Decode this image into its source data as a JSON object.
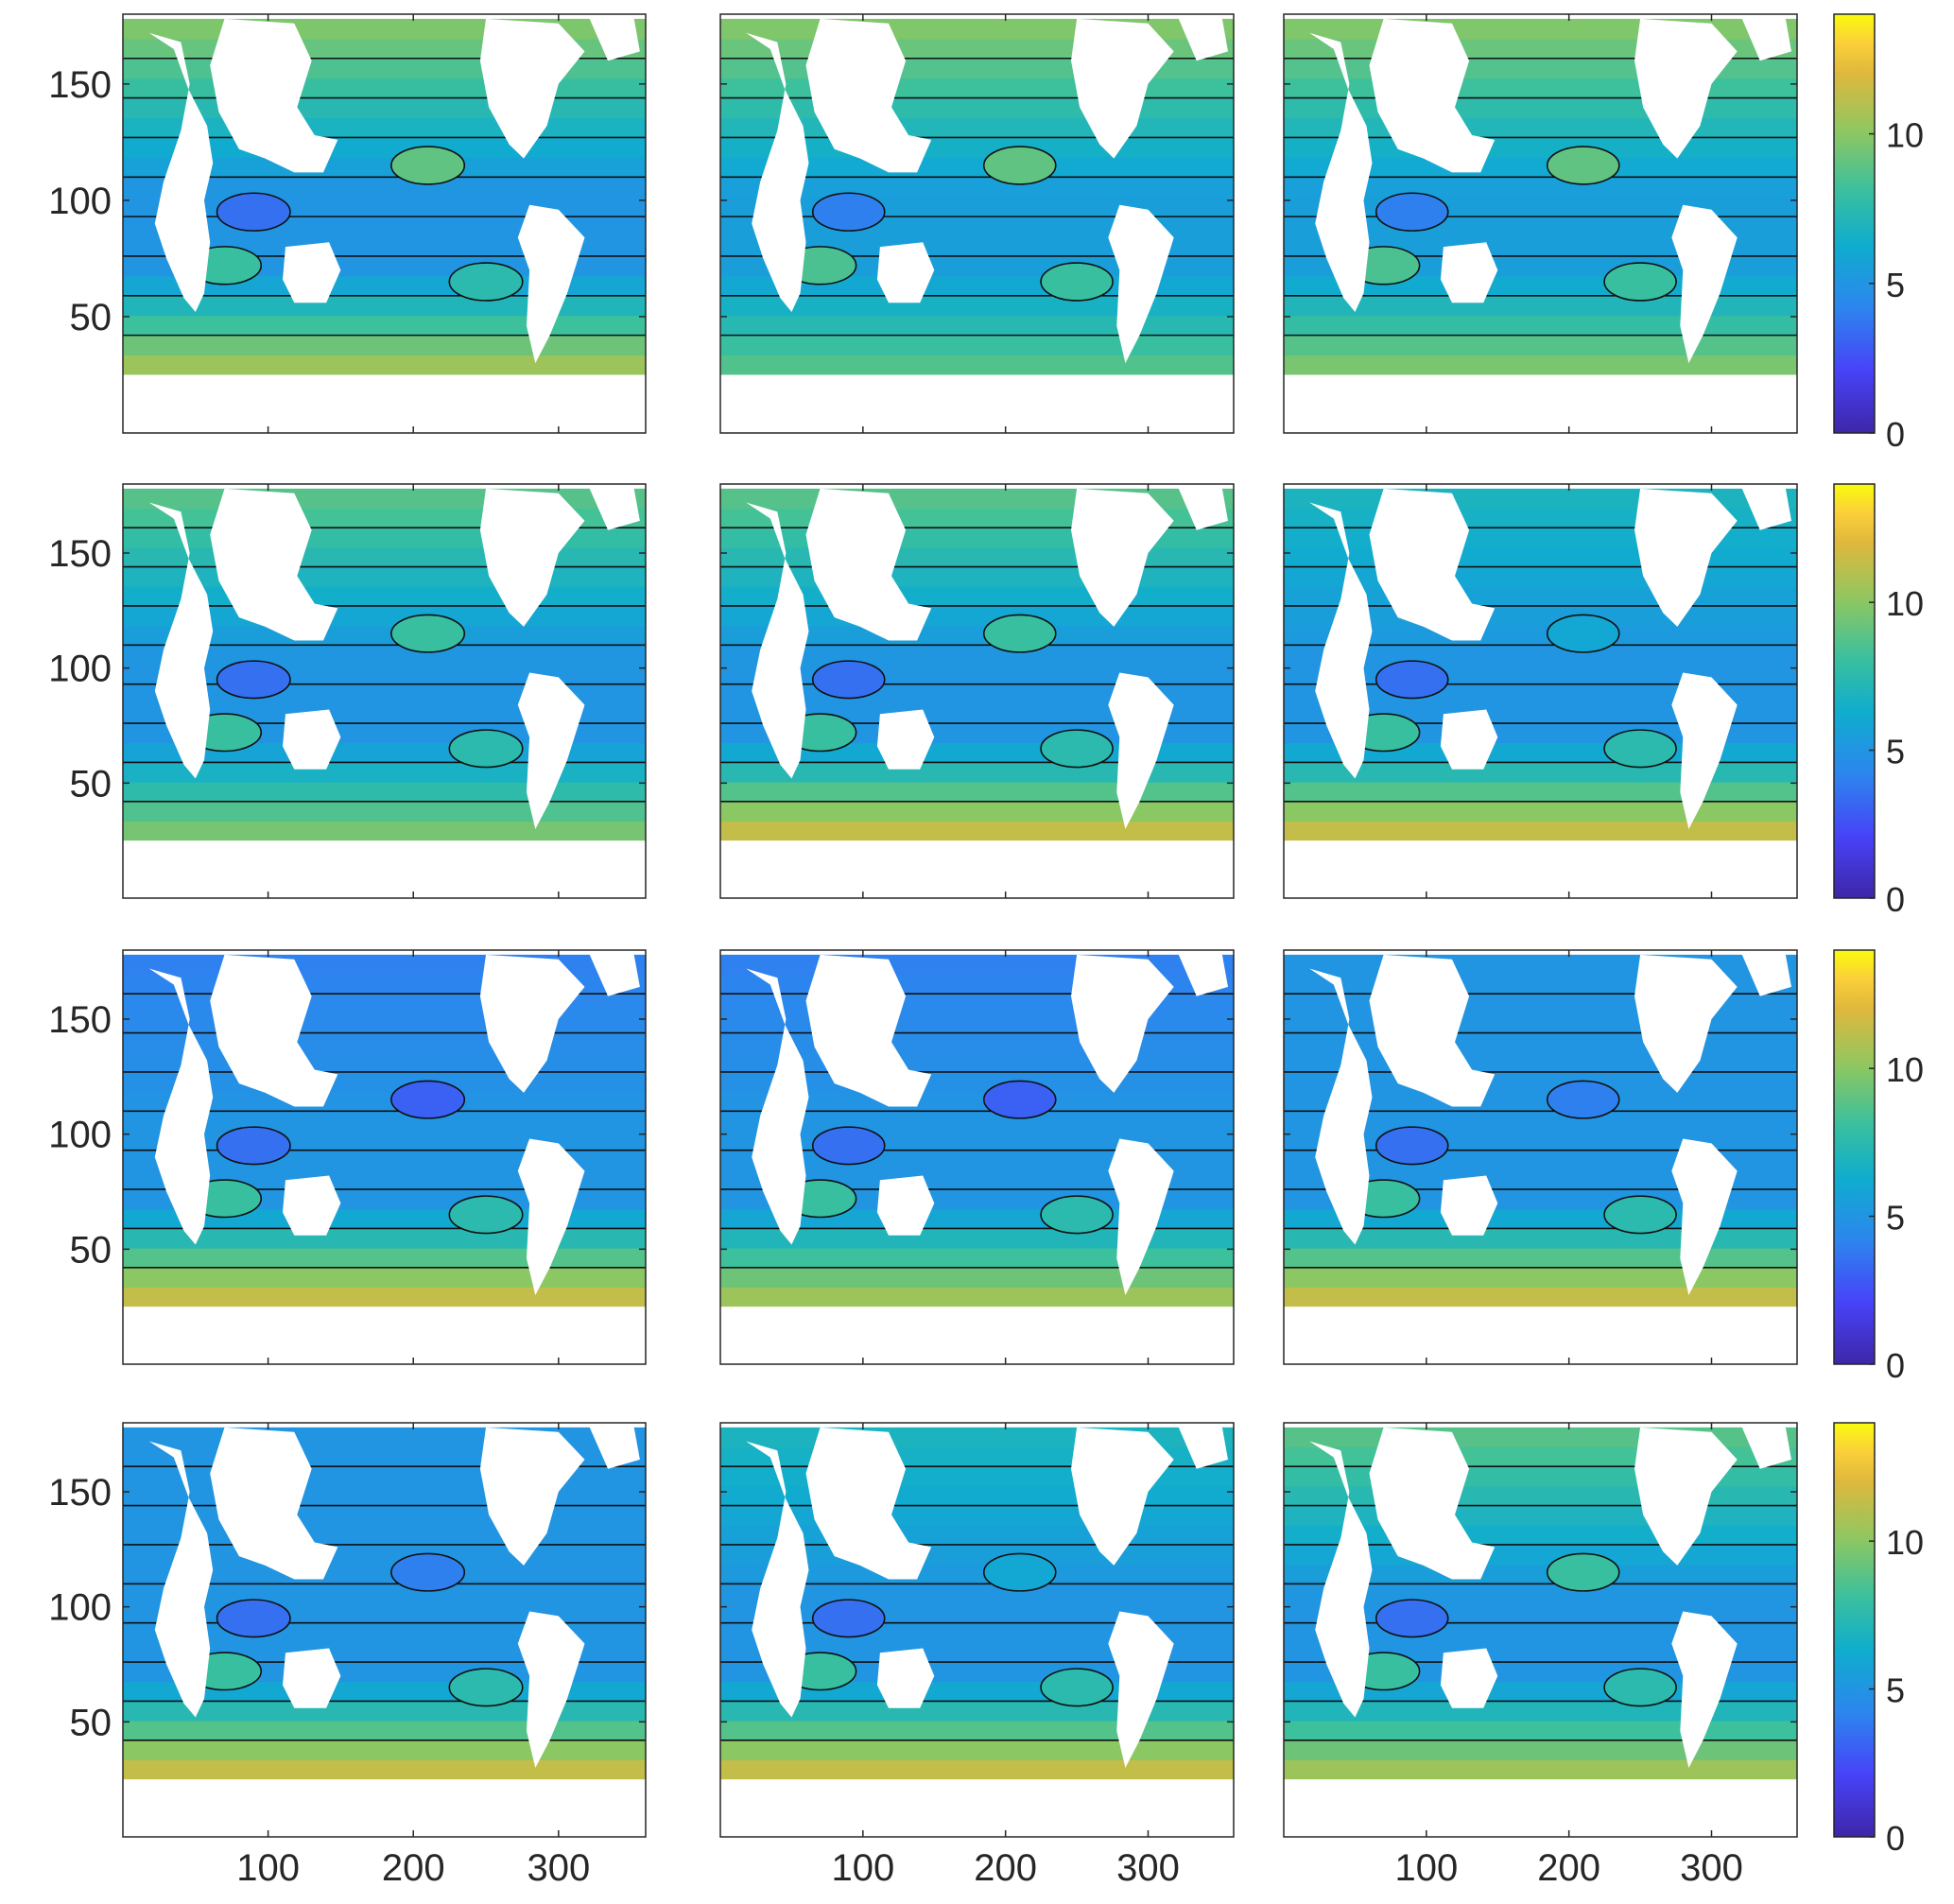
{
  "figure": {
    "rows": 4,
    "cols": 3,
    "colorbar_colors": [
      "#3e26a8",
      "#4743f8",
      "#2c86ee",
      "#0fadce",
      "#3bc09d",
      "#8ec761",
      "#e0b83c",
      "#fbcf3a",
      "#f9fb0e"
    ],
    "land_color": "#ffffff"
  },
  "chart_data": {
    "type": "heatmap",
    "description_free": true,
    "x_ticks": [
      100,
      200,
      300
    ],
    "y_ticks": [
      50,
      100,
      150
    ],
    "xlim": [
      0,
      360
    ],
    "ylim": [
      0,
      180
    ],
    "colorbar": {
      "ticks": [
        0,
        5,
        10
      ],
      "clim": [
        0,
        14
      ]
    },
    "panel_levels": [
      [
        {
          "south": 11,
          "mid": 5,
          "north": 10
        },
        {
          "south": 9,
          "mid": 5.5,
          "north": 10
        },
        {
          "south": 10,
          "mid": 5.5,
          "north": 10
        }
      ],
      [
        {
          "south": 10,
          "mid": 5,
          "north": 9
        },
        {
          "south": 12,
          "mid": 5,
          "north": 9
        },
        {
          "south": 12,
          "mid": 5,
          "north": 7
        }
      ],
      [
        {
          "south": 12,
          "mid": 5,
          "north": 4
        },
        {
          "south": 11,
          "mid": 5,
          "north": 4
        },
        {
          "south": 12,
          "mid": 5,
          "north": 5
        }
      ],
      [
        {
          "south": 12,
          "mid": 5,
          "north": 5
        },
        {
          "south": 12,
          "mid": 5,
          "north": 7
        },
        {
          "south": 11,
          "mid": 5,
          "north": 9
        }
      ]
    ]
  }
}
